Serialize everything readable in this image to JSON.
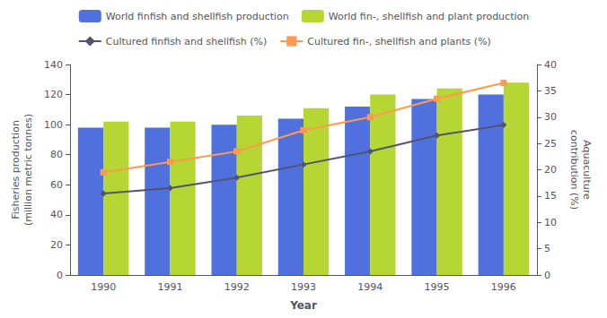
{
  "chart_data": {
    "type": "bar",
    "xlabel": "Year",
    "ylabel": "Fisheries production\n(million metric tonnes)",
    "y2label": "Aquaculture\ncontribution (%)",
    "categories": [
      "1990",
      "1991",
      "1992",
      "1993",
      "1994",
      "1995",
      "1996"
    ],
    "series": [
      {
        "name": "World finfish and shellfish production",
        "type": "bar",
        "values": [
          98,
          98,
          100,
          104,
          112,
          117,
          120
        ]
      },
      {
        "name": "World fin-, shellfish and plant production",
        "type": "bar",
        "values": [
          102,
          102,
          106,
          111,
          120,
          124,
          128
        ]
      },
      {
        "name": "Cultured finfish and shellfish (%)",
        "type": "line",
        "axis": "y2",
        "marker": "diamond",
        "values": [
          15.5,
          16.5,
          18.5,
          21.0,
          23.5,
          26.5,
          28.5
        ]
      },
      {
        "name": "Cultured fin-, shellfish and plants (%)",
        "type": "line",
        "axis": "y2",
        "marker": "square",
        "values": [
          19.5,
          21.5,
          23.5,
          27.5,
          30.0,
          33.5,
          36.5
        ]
      }
    ],
    "ylim": [
      0,
      140
    ],
    "yticks": [
      0,
      20,
      40,
      60,
      80,
      100,
      120,
      140
    ],
    "y2lim": [
      0,
      40
    ],
    "y2ticks": [
      0,
      5,
      10,
      15,
      20,
      25,
      30,
      35,
      40
    ],
    "grid": false,
    "legend": "top"
  }
}
